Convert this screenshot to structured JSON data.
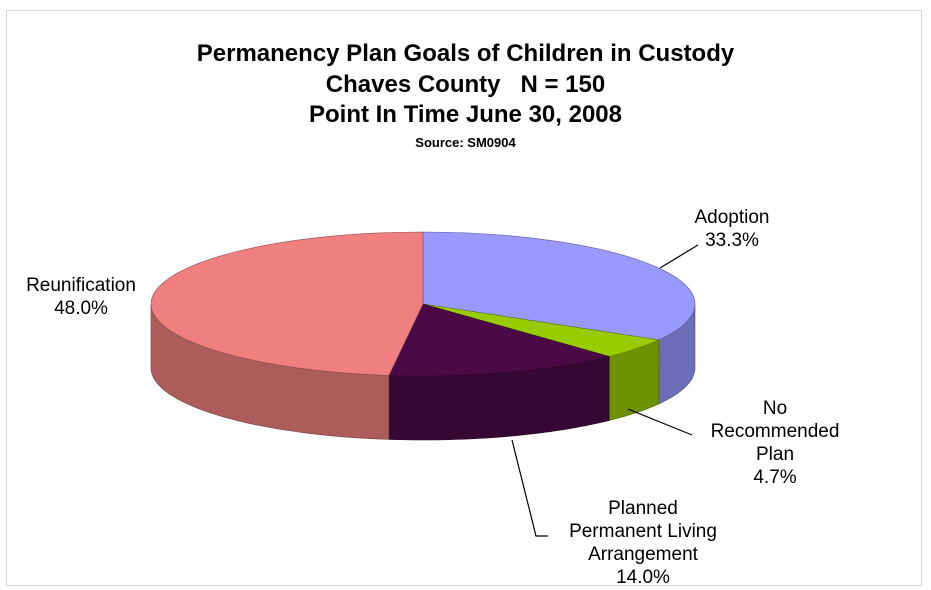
{
  "chart_data": {
    "type": "pie",
    "title": "Permanency Plan Goals of Children in Custody",
    "subtitle_lines": [
      "Chaves County   N = 150",
      "Point In Time June 30, 2008"
    ],
    "source": "Source: SM0904",
    "slices": [
      {
        "label_lines": [
          "Adoption"
        ],
        "value": 33.3,
        "value_label": "33.3%",
        "color": "#9999ff"
      },
      {
        "label_lines": [
          "No",
          "Recommended",
          "Plan"
        ],
        "value": 4.7,
        "value_label": "4.7%",
        "color": "#99cc00"
      },
      {
        "label_lines": [
          "Planned",
          "Permanent Living",
          "Arrangement"
        ],
        "value": 14.0,
        "value_label": "14.0%",
        "color": "#4b0a46"
      },
      {
        "label_lines": [
          "Reunification"
        ],
        "value": 48.0,
        "value_label": "48.0%",
        "color": "#f08080"
      }
    ],
    "style": "3d-pie",
    "legend": "none"
  }
}
